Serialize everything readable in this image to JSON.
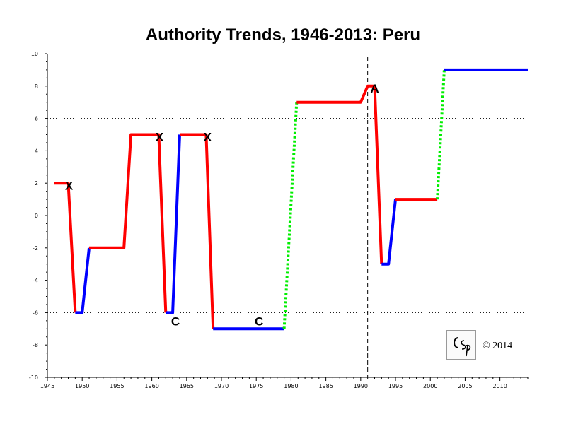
{
  "chart_data": {
    "type": "line",
    "title": "Authority Trends, 1946-2013: Peru",
    "xlabel": "",
    "ylabel": "",
    "xlim": [
      1945,
      2014
    ],
    "ylim": [
      -10,
      10
    ],
    "x_ticks": [
      1945,
      1950,
      1955,
      1960,
      1965,
      1970,
      1975,
      1980,
      1985,
      1990,
      1995,
      2000,
      2005,
      2010
    ],
    "y_ticks": [
      10,
      8,
      6,
      4,
      2,
      0,
      -2,
      -4,
      -6,
      -8,
      -10
    ],
    "reference_lines_y": [
      6,
      -6
    ],
    "reference_line_x": 1991,
    "grid": false,
    "colors": {
      "red": "#ff0000",
      "blue": "#0000ff",
      "green": "#00ee00"
    },
    "segments": [
      {
        "color": "red",
        "style": "solid",
        "points": [
          [
            1946,
            2
          ],
          [
            1948,
            2
          ],
          [
            1949,
            -6
          ]
        ]
      },
      {
        "color": "blue",
        "style": "solid",
        "points": [
          [
            1949,
            -6
          ],
          [
            1950,
            -6
          ],
          [
            1951,
            -2
          ]
        ]
      },
      {
        "color": "red",
        "style": "solid",
        "points": [
          [
            1951,
            -2
          ],
          [
            1956,
            -2
          ],
          [
            1957,
            5
          ],
          [
            1961,
            5
          ],
          [
            1962,
            -6
          ]
        ]
      },
      {
        "color": "blue",
        "style": "solid",
        "points": [
          [
            1962,
            -6
          ],
          [
            1963,
            -6
          ],
          [
            1964,
            5
          ]
        ]
      },
      {
        "color": "red",
        "style": "solid",
        "points": [
          [
            1964,
            5
          ],
          [
            1967.8,
            5
          ],
          [
            1968.8,
            -7
          ]
        ]
      },
      {
        "color": "blue",
        "style": "solid",
        "points": [
          [
            1968.8,
            -7
          ],
          [
            1979,
            -7
          ]
        ]
      },
      {
        "color": "green",
        "style": "dotted",
        "points": [
          [
            1979,
            -7
          ],
          [
            1980.8,
            7
          ]
        ]
      },
      {
        "color": "red",
        "style": "solid",
        "points": [
          [
            1980.8,
            7
          ],
          [
            1990,
            7
          ],
          [
            1991,
            8
          ],
          [
            1992,
            8
          ],
          [
            1993,
            -3
          ]
        ]
      },
      {
        "color": "blue",
        "style": "solid",
        "points": [
          [
            1993,
            -3
          ],
          [
            1994,
            -3
          ],
          [
            1995,
            1
          ]
        ]
      },
      {
        "color": "red",
        "style": "solid",
        "points": [
          [
            1995,
            1
          ],
          [
            2001,
            1
          ]
        ]
      },
      {
        "color": "green",
        "style": "dotted",
        "points": [
          [
            2001,
            1
          ],
          [
            2002,
            9
          ]
        ]
      },
      {
        "color": "blue",
        "style": "solid",
        "points": [
          [
            2002,
            9
          ],
          [
            2014,
            9
          ]
        ]
      }
    ],
    "annotations": [
      {
        "text": "X",
        "x": 1948.1,
        "y": 1.6
      },
      {
        "text": "X",
        "x": 1961.1,
        "y": 4.6
      },
      {
        "text": "X",
        "x": 1968.0,
        "y": 4.6
      },
      {
        "text": "C",
        "x": 1963.4,
        "y": -6.8
      },
      {
        "text": "C",
        "x": 1975.4,
        "y": -6.8
      },
      {
        "text": "A",
        "x": 1992.0,
        "y": 7.6
      }
    ]
  },
  "copyright": "© 2014"
}
